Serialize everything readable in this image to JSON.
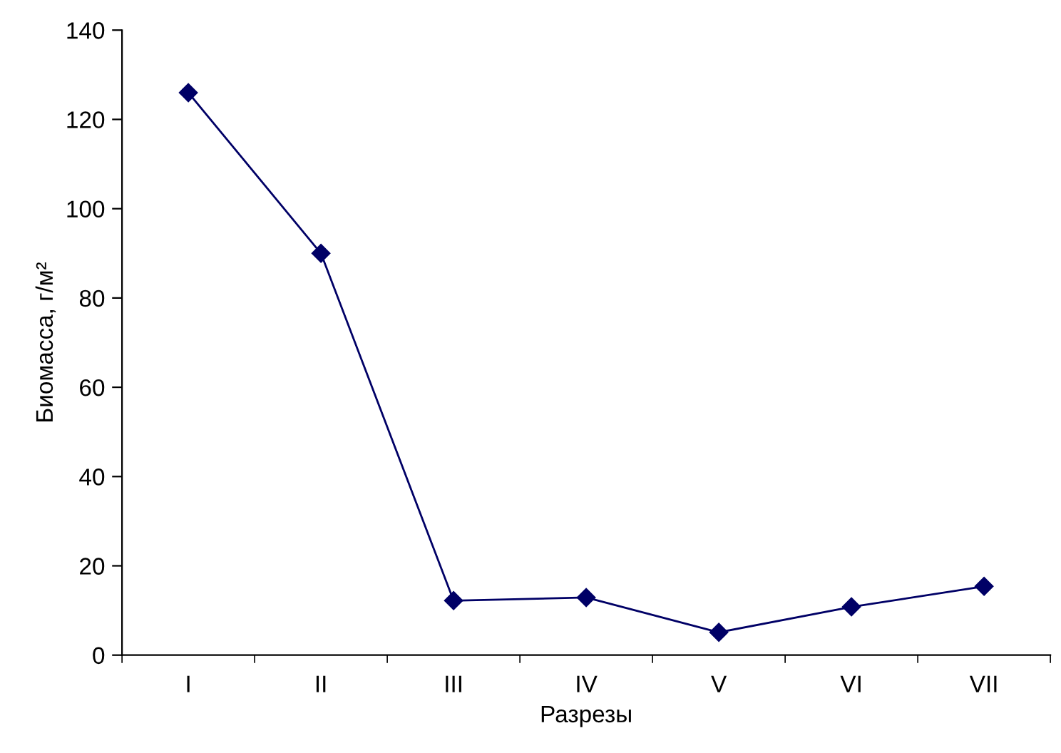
{
  "chart_data": {
    "type": "line",
    "xlabel": "Разрезы",
    "ylabel": "Биомасса, г/м²",
    "categories": [
      "I",
      "II",
      "III",
      "IV",
      "V",
      "VI",
      "VII"
    ],
    "series": [
      {
        "color": "#000066",
        "values": [
          126,
          90,
          12.2,
          12.9,
          5.1,
          10.8,
          15.4
        ]
      }
    ],
    "ylim": [
      0,
      140
    ],
    "yticks": [
      0,
      20,
      40,
      60,
      80,
      100,
      120,
      140
    ],
    "grid": false,
    "legend": false,
    "marker": "diamond",
    "line_style": "solid"
  }
}
